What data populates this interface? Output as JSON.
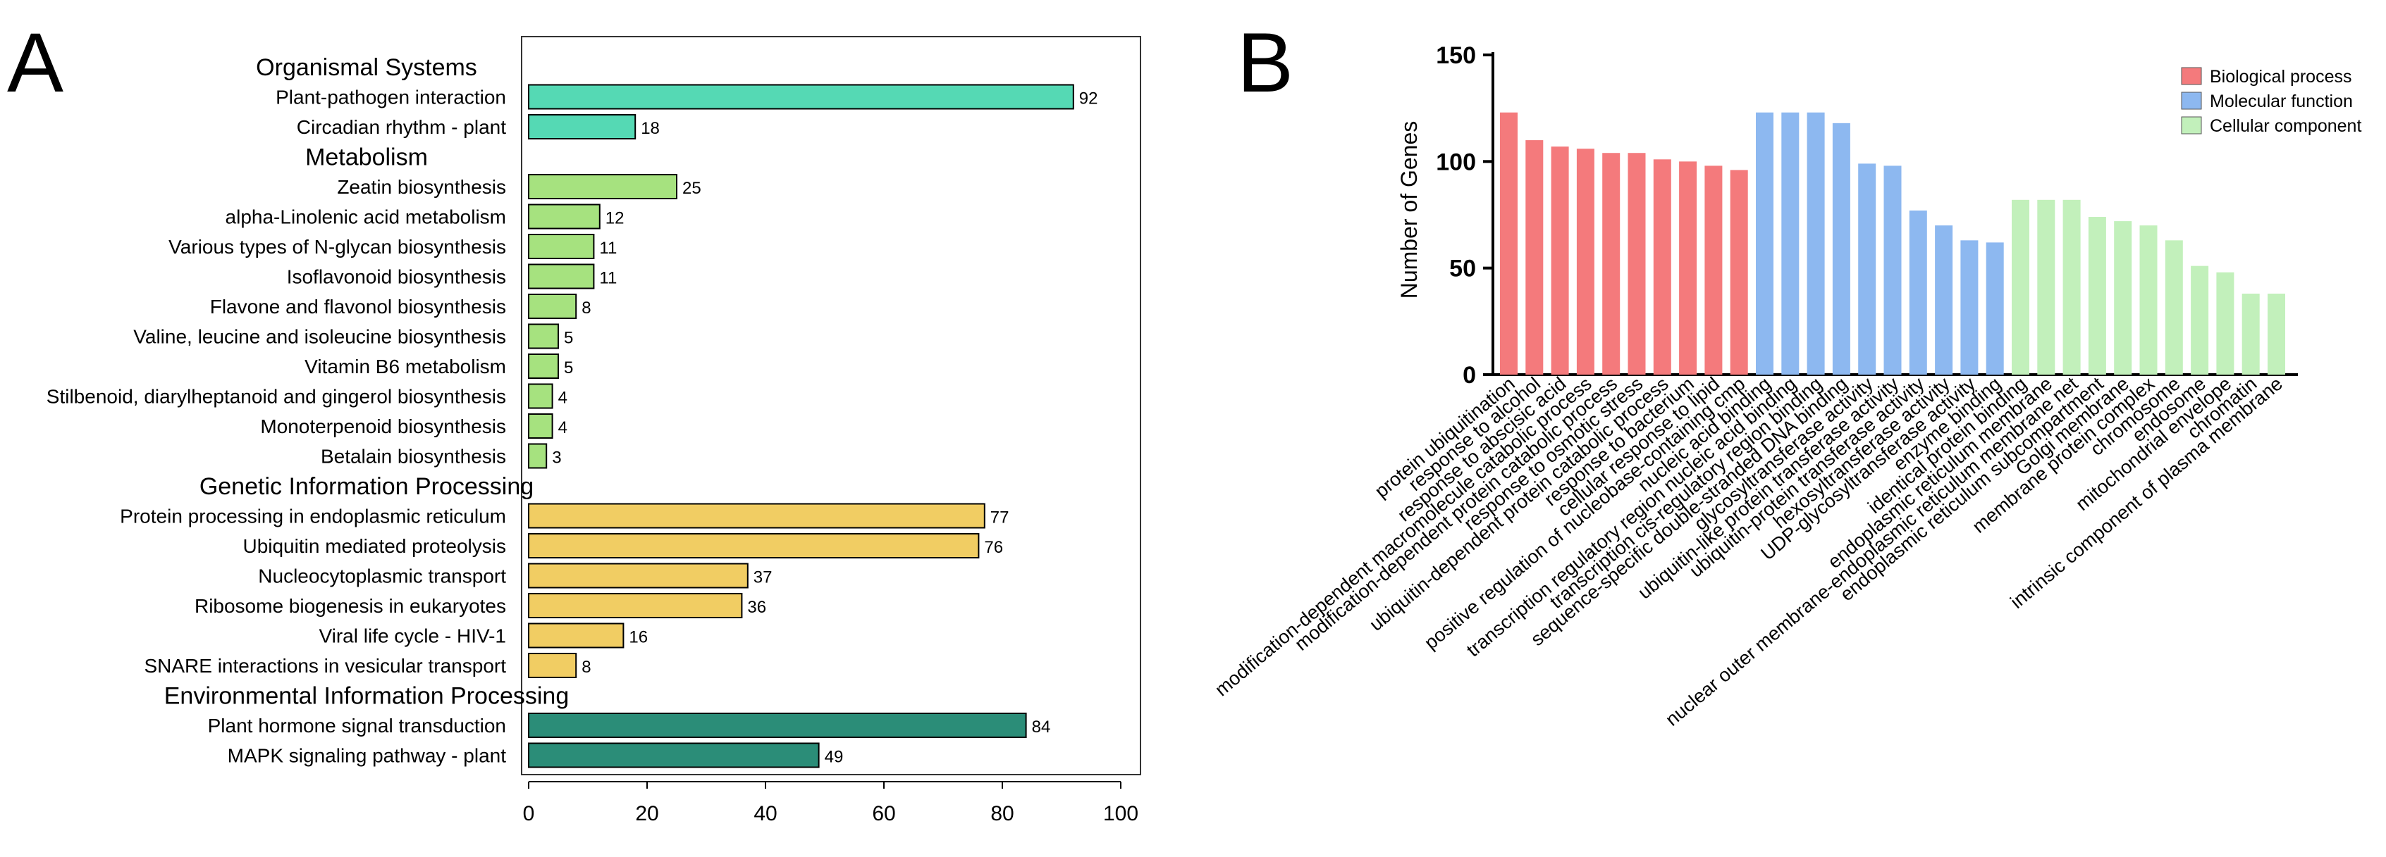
{
  "panels": {
    "a": {
      "letter": "A",
      "chart_data": {
        "type": "bar",
        "orientation": "horizontal",
        "xlim": [
          0,
          100
        ],
        "x_ticks": [
          0,
          20,
          40,
          60,
          80,
          100
        ],
        "groups": [
          {
            "name": "Organismal Systems",
            "color": "#55d9b4",
            "items": [
              {
                "label": "Plant-pathogen interaction",
                "value": 92
              },
              {
                "label": "Circadian rhythm - plant",
                "value": 18
              }
            ]
          },
          {
            "name": "Metabolism",
            "color": "#a6e27f",
            "items": [
              {
                "label": "Zeatin biosynthesis",
                "value": 25
              },
              {
                "label": "alpha-Linolenic acid metabolism",
                "value": 12
              },
              {
                "label": "Various types of N-glycan biosynthesis",
                "value": 11
              },
              {
                "label": "Isoflavonoid biosynthesis",
                "value": 11
              },
              {
                "label": "Flavone and flavonol biosynthesis",
                "value": 8
              },
              {
                "label": "Valine, leucine and isoleucine biosynthesis",
                "value": 5
              },
              {
                "label": "Vitamin B6 metabolism",
                "value": 5
              },
              {
                "label": "Stilbenoid, diarylheptanoid and gingerol biosynthesis",
                "value": 4
              },
              {
                "label": "Monoterpenoid biosynthesis",
                "value": 4
              },
              {
                "label": "Betalain biosynthesis",
                "value": 3
              }
            ]
          },
          {
            "name": "Genetic Information Processing",
            "color": "#f1cd63",
            "items": [
              {
                "label": "Protein processing in endoplasmic reticulum",
                "value": 77
              },
              {
                "label": "Ubiquitin mediated proteolysis",
                "value": 76
              },
              {
                "label": "Nucleocytoplasmic transport",
                "value": 37
              },
              {
                "label": "Ribosome biogenesis in eukaryotes",
                "value": 36
              },
              {
                "label": "Viral life cycle - HIV-1",
                "value": 16
              },
              {
                "label": "SNARE interactions in vesicular transport",
                "value": 8
              }
            ]
          },
          {
            "name": "Environmental Information Processing",
            "color": "#2b8d78",
            "items": [
              {
                "label": "Plant hormone signal transduction",
                "value": 84
              },
              {
                "label": "MAPK signaling pathway - plant",
                "value": 49
              }
            ]
          }
        ]
      }
    },
    "b": {
      "letter": "B",
      "chart_data": {
        "type": "bar",
        "ylabel": "Number of Genes",
        "ylim": [
          0,
          150
        ],
        "y_ticks": [
          0,
          50,
          100,
          150
        ],
        "legend_position": "top-right",
        "series": [
          {
            "name": "Biological process",
            "color": "#f47a7c",
            "items": [
              {
                "label": "protein ubiquitination",
                "value": 123
              },
              {
                "label": "response to alcohol",
                "value": 110
              },
              {
                "label": "response to abscisic acid",
                "value": 107
              },
              {
                "label": "modification-dependent macromolecule catabolic process",
                "value": 106
              },
              {
                "label": "modification-dependent protein catabolic process",
                "value": 104
              },
              {
                "label": "response to osmotic stress",
                "value": 104
              },
              {
                "label": "ubiquitin-dependent protein catabolic process",
                "value": 101
              },
              {
                "label": "response to bacterium",
                "value": 100
              },
              {
                "label": "cellular response to lipid",
                "value": 98
              },
              {
                "label": "positive regulation of nucleobase-containing cmp",
                "value": 96
              }
            ]
          },
          {
            "name": "Molecular function",
            "color": "#8db8f0",
            "items": [
              {
                "label": "nucleic acid binding",
                "value": 123
              },
              {
                "label": "transcription regulatory region nucleic acid binding",
                "value": 123
              },
              {
                "label": "transcription cis-regulatory region binding",
                "value": 123
              },
              {
                "label": "sequence-specific double-stranded DNA binding",
                "value": 118
              },
              {
                "label": "glycosyltransferase activity",
                "value": 99
              },
              {
                "label": "ubiquitin-like protein transferase activity",
                "value": 98
              },
              {
                "label": "ubiquitin-protein transferase activity",
                "value": 77
              },
              {
                "label": "hexosyltransferase activity",
                "value": 70
              },
              {
                "label": "UDP-glycosyltransferase activity",
                "value": 63
              },
              {
                "label": "enzyme binding",
                "value": 62
              }
            ]
          },
          {
            "name": "Cellular component",
            "color": "#c2f0bb",
            "items": [
              {
                "label": "identical protein binding",
                "value": 82
              },
              {
                "label": "endoplasmic reticulum membrane",
                "value": 82
              },
              {
                "label": "nuclear outer membrane-endoplasmic reticulum membrane net",
                "value": 82
              },
              {
                "label": "endoplasmic reticulum subcompartment",
                "value": 74
              },
              {
                "label": "Golgi membrane",
                "value": 72
              },
              {
                "label": "membrane protein complex",
                "value": 70
              },
              {
                "label": "chromosome",
                "value": 63
              },
              {
                "label": "endosome",
                "value": 51
              },
              {
                "label": "mitochondrial envelope",
                "value": 48
              },
              {
                "label": "chromatin",
                "value": 38
              },
              {
                "label": "intrinsic component of plasma membrane",
                "value": 38
              }
            ]
          }
        ]
      }
    }
  }
}
